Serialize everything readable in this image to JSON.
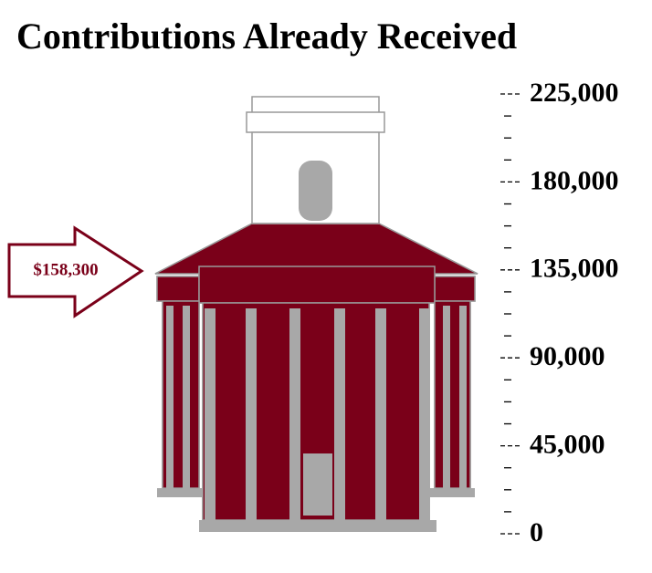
{
  "chart_data": {
    "type": "gauge",
    "title": "Contributions Already Received",
    "value": 158300,
    "value_label": "$158,300",
    "color": "#7a0019",
    "ylim": [
      0,
      225000
    ],
    "yticks": [
      0,
      {
        "value": 45000,
        "label": "45,000"
      },
      {
        "value": 90000,
        "label": "90,000"
      },
      {
        "value": 135000,
        "label": "135,000"
      },
      {
        "value": 180000,
        "label": "180,000"
      },
      {
        "value": 225000,
        "label": "225,000"
      }
    ]
  }
}
